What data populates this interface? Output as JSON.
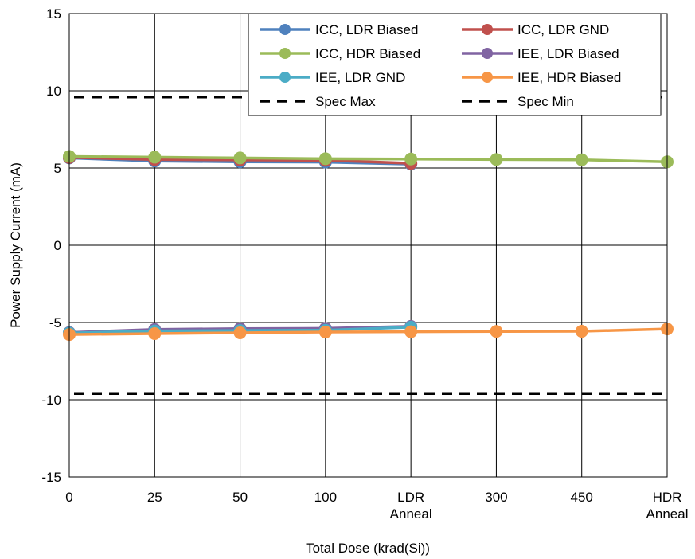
{
  "chart_data": {
    "type": "line",
    "xlabel": "Total Dose (krad(Si))",
    "ylabel": "Power Supply Current (mA)",
    "ylim": [
      -15,
      15
    ],
    "yticks": [
      15,
      10,
      5,
      0,
      -5,
      -10,
      -15
    ],
    "categories": [
      [
        "0"
      ],
      [
        "25"
      ],
      [
        "50"
      ],
      [
        "100"
      ],
      [
        "LDR",
        "Anneal"
      ],
      [
        "300"
      ],
      [
        "450"
      ],
      [
        "HDR",
        "Anneal"
      ]
    ],
    "grid": true,
    "legend_position": "top-right",
    "series": [
      {
        "name": "ICC, LDR Biased",
        "color": "#4f81bd",
        "style": "solid-marker",
        "values": [
          5.65,
          5.45,
          5.4,
          5.38,
          5.25,
          null,
          null,
          null
        ]
      },
      {
        "name": "ICC, LDR GND",
        "color": "#c0504d",
        "style": "solid-marker",
        "values": [
          5.68,
          5.55,
          5.52,
          5.5,
          5.3,
          null,
          null,
          null
        ]
      },
      {
        "name": "ICC, HDR Biased",
        "color": "#9bbb59",
        "style": "solid-marker",
        "values": [
          5.75,
          5.7,
          5.65,
          5.6,
          5.58,
          5.55,
          5.53,
          5.4
        ]
      },
      {
        "name": "IEE, LDR Biased",
        "color": "#8064a2",
        "style": "solid-marker",
        "values": [
          -5.65,
          -5.45,
          -5.4,
          -5.38,
          -5.25,
          null,
          null,
          null
        ]
      },
      {
        "name": "IEE, LDR GND",
        "color": "#4bacc6",
        "style": "solid-marker",
        "values": [
          -5.68,
          -5.55,
          -5.52,
          -5.5,
          -5.3,
          null,
          null,
          null
        ]
      },
      {
        "name": "IEE, HDR Biased",
        "color": "#f79646",
        "style": "solid-marker",
        "values": [
          -5.78,
          -5.72,
          -5.67,
          -5.62,
          -5.6,
          -5.58,
          -5.57,
          -5.42
        ]
      },
      {
        "name": "Spec Max",
        "color": "#000000",
        "style": "dashed",
        "values": [
          9.6,
          9.6,
          9.6,
          9.6,
          9.6,
          9.6,
          9.6,
          9.6
        ]
      },
      {
        "name": "Spec Min",
        "color": "#000000",
        "style": "dashed",
        "values": [
          -9.6,
          -9.6,
          -9.6,
          -9.6,
          -9.6,
          -9.6,
          -9.6,
          -9.6
        ]
      }
    ]
  }
}
